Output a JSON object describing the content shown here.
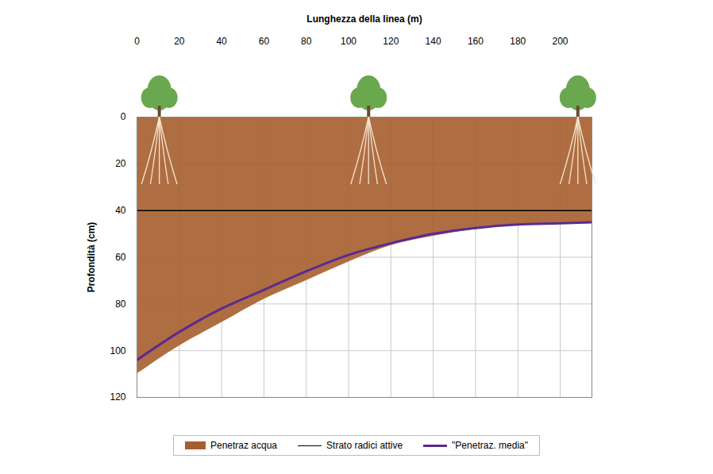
{
  "chart_data": {
    "type": "area",
    "x_label": "Lunghezza della linea (m)",
    "y_label": "Profondità (cm)",
    "x": [
      0,
      20,
      40,
      60,
      80,
      100,
      120,
      140,
      160,
      180,
      200,
      215
    ],
    "series": [
      {
        "name": "Penetraz acqua",
        "type": "area",
        "color": "#a65e2e",
        "values": [
          110,
          98,
          88,
          78,
          70,
          62,
          55,
          51,
          48,
          46,
          45.5,
          45
        ]
      },
      {
        "name": "Strato radici attive",
        "type": "line",
        "color": "#000000",
        "line_style": "solid",
        "values": [
          40,
          40,
          40,
          40,
          40,
          40,
          40,
          40,
          40,
          40,
          40,
          40
        ]
      },
      {
        "name": "\"Penetraz. media\"",
        "type": "line",
        "color": "#5b2a91",
        "line_style": "solid",
        "values": [
          104,
          92,
          82,
          74,
          66,
          59,
          54,
          50,
          47.5,
          46,
          45.5,
          45
        ]
      }
    ],
    "xlim": [
      0,
      215
    ],
    "xticks": [
      0,
      20,
      40,
      60,
      80,
      100,
      120,
      140,
      160,
      180,
      200
    ],
    "ylim": [
      0,
      120
    ],
    "yticks": [
      0,
      20,
      40,
      60,
      80,
      100,
      120
    ],
    "grid": true,
    "legend": "bottom"
  }
}
